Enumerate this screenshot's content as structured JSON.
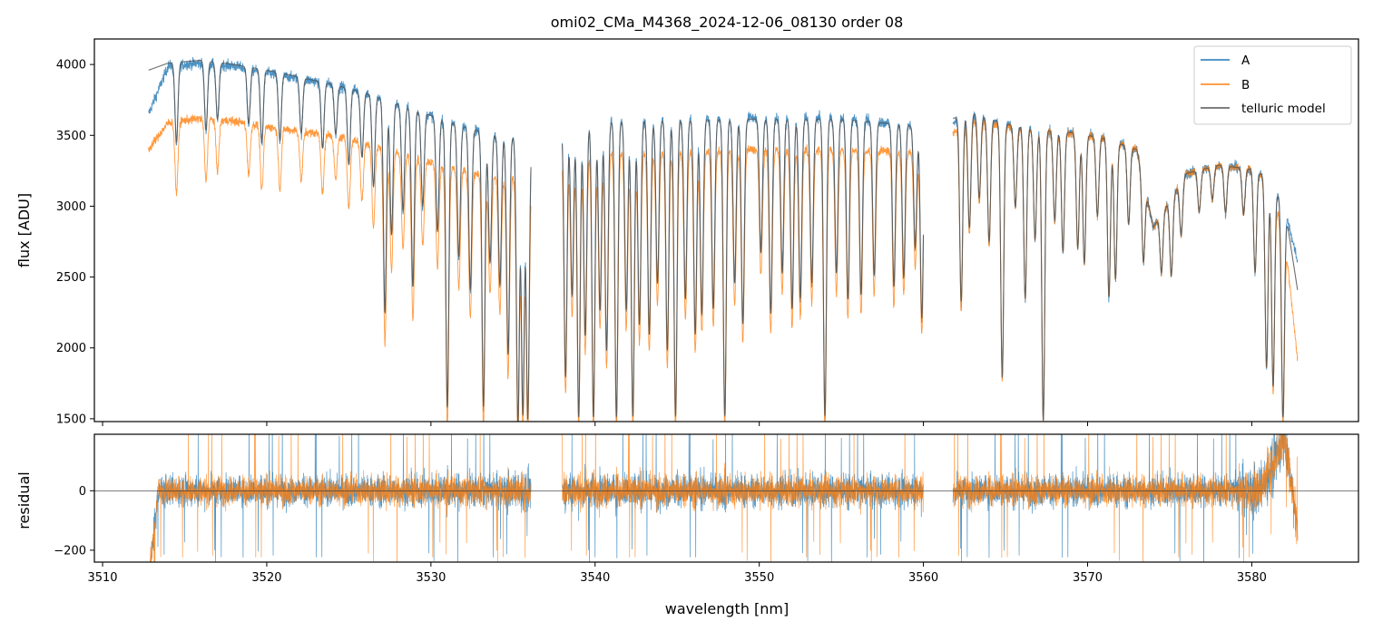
{
  "chart_data": {
    "type": "line",
    "title": "omi02_CMa_M4368_2024-12-06_08130  order 08",
    "xlabel": "wavelength [nm]",
    "xlim": [
      3509.5,
      3586.5
    ],
    "x_ticks": [
      "3510",
      "3520",
      "3530",
      "3540",
      "3550",
      "3560",
      "3570",
      "3580"
    ],
    "legend_position": "top-right",
    "colors": {
      "A": "#1f77b4",
      "B": "#ff7f0e",
      "telluric model": "#555555"
    },
    "panels": [
      {
        "name": "flux",
        "ylabel": "flux [ADU]",
        "ylim": [
          1480,
          4180
        ],
        "y_ticks": [
          "1500",
          "2000",
          "2500",
          "3000",
          "3500",
          "4000"
        ],
        "segments": [
          [
            3512.8,
            3536.1
          ],
          [
            3538.0,
            3560.0
          ],
          [
            3561.8,
            3582.8
          ]
        ],
        "series": [
          {
            "name": "A",
            "continuum": [
              [
                3512.8,
                3650
              ],
              [
                3514,
                3990
              ],
              [
                3516,
                4010
              ],
              [
                3518,
                3990
              ],
              [
                3520,
                3940
              ],
              [
                3522,
                3900
              ],
              [
                3524,
                3860
              ],
              [
                3526,
                3800
              ],
              [
                3528,
                3720
              ],
              [
                3530,
                3640
              ],
              [
                3532,
                3560
              ],
              [
                3534,
                3500
              ],
              [
                3536.1,
                3480
              ],
              [
                3538,
                3600
              ],
              [
                3540,
                3610
              ],
              [
                3545,
                3620
              ],
              [
                3550,
                3625
              ],
              [
                3555,
                3625
              ],
              [
                3560,
                3560
              ],
              [
                3561.8,
                3600
              ],
              [
                3563,
                3640
              ],
              [
                3565,
                3580
              ],
              [
                3567,
                3540
              ],
              [
                3569,
                3520
              ],
              [
                3571,
                3480
              ],
              [
                3573,
                3400
              ],
              [
                3574,
                2850
              ],
              [
                3576,
                3230
              ],
              [
                3578,
                3290
              ],
              [
                3580,
                3260
              ],
              [
                3581,
                3200
              ],
              [
                3582,
                3000
              ],
              [
                3582.8,
                2600
              ]
            ]
          },
          {
            "name": "B",
            "continuum": [
              [
                3512.8,
                3400
              ],
              [
                3514,
                3590
              ],
              [
                3516,
                3620
              ],
              [
                3518,
                3600
              ],
              [
                3520,
                3560
              ],
              [
                3522,
                3530
              ],
              [
                3524,
                3500
              ],
              [
                3526,
                3450
              ],
              [
                3528,
                3380
              ],
              [
                3530,
                3310
              ],
              [
                3532,
                3250
              ],
              [
                3534,
                3210
              ],
              [
                3536.1,
                3200
              ],
              [
                3538,
                3370
              ],
              [
                3540,
                3380
              ],
              [
                3545,
                3390
              ],
              [
                3550,
                3400
              ],
              [
                3555,
                3400
              ],
              [
                3560,
                3380
              ],
              [
                3561.8,
                3520
              ],
              [
                3563,
                3600
              ],
              [
                3565,
                3560
              ],
              [
                3567,
                3530
              ],
              [
                3569,
                3510
              ],
              [
                3571,
                3480
              ],
              [
                3573,
                3400
              ],
              [
                3574,
                2850
              ],
              [
                3576,
                3230
              ],
              [
                3578,
                3290
              ],
              [
                3580,
                3260
              ],
              [
                3581,
                3180
              ],
              [
                3582,
                2800
              ],
              [
                3582.8,
                1900
              ]
            ]
          },
          {
            "name": "telluric model",
            "continuum": [
              [
                3512.8,
                3960
              ],
              [
                3514,
                4010
              ],
              [
                3516,
                4030
              ],
              [
                3518,
                4000
              ],
              [
                3520,
                3960
              ],
              [
                3522,
                3910
              ],
              [
                3524,
                3860
              ],
              [
                3526,
                3800
              ],
              [
                3528,
                3720
              ],
              [
                3530,
                3640
              ],
              [
                3532,
                3560
              ],
              [
                3534,
                3500
              ],
              [
                3536.1,
                3480
              ],
              [
                3538,
                3590
              ],
              [
                3540,
                3600
              ],
              [
                3545,
                3610
              ],
              [
                3550,
                3615
              ],
              [
                3555,
                3615
              ],
              [
                3560,
                3560
              ],
              [
                3561.8,
                3620
              ],
              [
                3563,
                3660
              ],
              [
                3565,
                3580
              ],
              [
                3567,
                3540
              ],
              [
                3569,
                3520
              ],
              [
                3571,
                3480
              ],
              [
                3573,
                3400
              ],
              [
                3574,
                2850
              ],
              [
                3576,
                3230
              ],
              [
                3578,
                3290
              ],
              [
                3580,
                3260
              ],
              [
                3581,
                3200
              ],
              [
                3582,
                3000
              ],
              [
                3582.8,
                2400
              ]
            ]
          }
        ],
        "absorption_lines": [
          [
            3514.5,
            0.86
          ],
          [
            3516.3,
            0.88
          ],
          [
            3517.0,
            0.9
          ],
          [
            3518.9,
            0.9
          ],
          [
            3519.7,
            0.87
          ],
          [
            3520.8,
            0.88
          ],
          [
            3522.1,
            0.9
          ],
          [
            3523.4,
            0.88
          ],
          [
            3524.2,
            0.91
          ],
          [
            3525.0,
            0.86
          ],
          [
            3525.8,
            0.88
          ],
          [
            3526.5,
            0.83
          ],
          [
            3527.2,
            0.6
          ],
          [
            3527.6,
            0.75
          ],
          [
            3528.3,
            0.8
          ],
          [
            3528.9,
            0.66
          ],
          [
            3529.5,
            0.82
          ],
          [
            3530.4,
            0.78
          ],
          [
            3531.0,
            0.44
          ],
          [
            3531.7,
            0.74
          ],
          [
            3532.4,
            0.68
          ],
          [
            3533.2,
            0.45
          ],
          [
            3533.6,
            0.74
          ],
          [
            3534.2,
            0.7
          ],
          [
            3534.7,
            0.56
          ],
          [
            3535.3,
            0.42
          ],
          [
            3535.6,
            0.44
          ],
          [
            3535.9,
            0.43
          ],
          [
            3538.2,
            0.5
          ],
          [
            3538.6,
            0.66
          ],
          [
            3539.0,
            0.42
          ],
          [
            3539.4,
            0.58
          ],
          [
            3539.9,
            0.42
          ],
          [
            3540.3,
            0.63
          ],
          [
            3540.7,
            0.55
          ],
          [
            3541.3,
            0.42
          ],
          [
            3541.9,
            0.63
          ],
          [
            3542.3,
            0.42
          ],
          [
            3542.7,
            0.6
          ],
          [
            3543.3,
            0.58
          ],
          [
            3543.8,
            0.68
          ],
          [
            3544.4,
            0.55
          ],
          [
            3544.9,
            0.42
          ],
          [
            3545.5,
            0.65
          ],
          [
            3546.1,
            0.58
          ],
          [
            3546.5,
            0.62
          ],
          [
            3547.2,
            0.63
          ],
          [
            3547.9,
            0.42
          ],
          [
            3548.5,
            0.68
          ],
          [
            3549.0,
            0.6
          ],
          [
            3550.1,
            0.74
          ],
          [
            3550.7,
            0.62
          ],
          [
            3551.4,
            0.7
          ],
          [
            3552.0,
            0.63
          ],
          [
            3552.5,
            0.65
          ],
          [
            3553.2,
            0.68
          ],
          [
            3554.0,
            0.42
          ],
          [
            3554.7,
            0.7
          ],
          [
            3555.4,
            0.65
          ],
          [
            3556.2,
            0.66
          ],
          [
            3557.0,
            0.7
          ],
          [
            3558.2,
            0.68
          ],
          [
            3558.8,
            0.7
          ],
          [
            3559.5,
            0.76
          ],
          [
            3559.9,
            0.62
          ],
          [
            3562.3,
            0.64
          ],
          [
            3562.8,
            0.78
          ],
          [
            3563.4,
            0.84
          ],
          [
            3564.0,
            0.76
          ],
          [
            3564.8,
            0.5
          ],
          [
            3565.6,
            0.84
          ],
          [
            3566.2,
            0.66
          ],
          [
            3566.8,
            0.78
          ],
          [
            3567.3,
            0.42
          ],
          [
            3568.0,
            0.82
          ],
          [
            3568.5,
            0.76
          ],
          [
            3569.4,
            0.77
          ],
          [
            3569.8,
            0.74
          ],
          [
            3570.6,
            0.84
          ],
          [
            3571.3,
            0.68
          ],
          [
            3571.7,
            0.72
          ],
          [
            3572.5,
            0.84
          ],
          [
            3573.4,
            0.82
          ],
          [
            3574.5,
            0.86
          ],
          [
            3575.1,
            0.82
          ],
          [
            3575.7,
            0.88
          ],
          [
            3576.8,
            0.91
          ],
          [
            3577.6,
            0.93
          ],
          [
            3578.4,
            0.9
          ],
          [
            3579.5,
            0.9
          ],
          [
            3580.2,
            0.78
          ],
          [
            3580.9,
            0.58
          ],
          [
            3581.3,
            0.55
          ],
          [
            3581.9,
            0.5
          ]
        ]
      },
      {
        "name": "residual",
        "ylabel": "residual",
        "ylim": [
          -240,
          190
        ],
        "y_ticks": [
          "−200",
          "0"
        ],
        "zero_line": 0,
        "series": [
          {
            "name": "A",
            "noise_amplitude": 70
          },
          {
            "name": "B",
            "noise_amplitude": 65
          }
        ]
      }
    ]
  }
}
